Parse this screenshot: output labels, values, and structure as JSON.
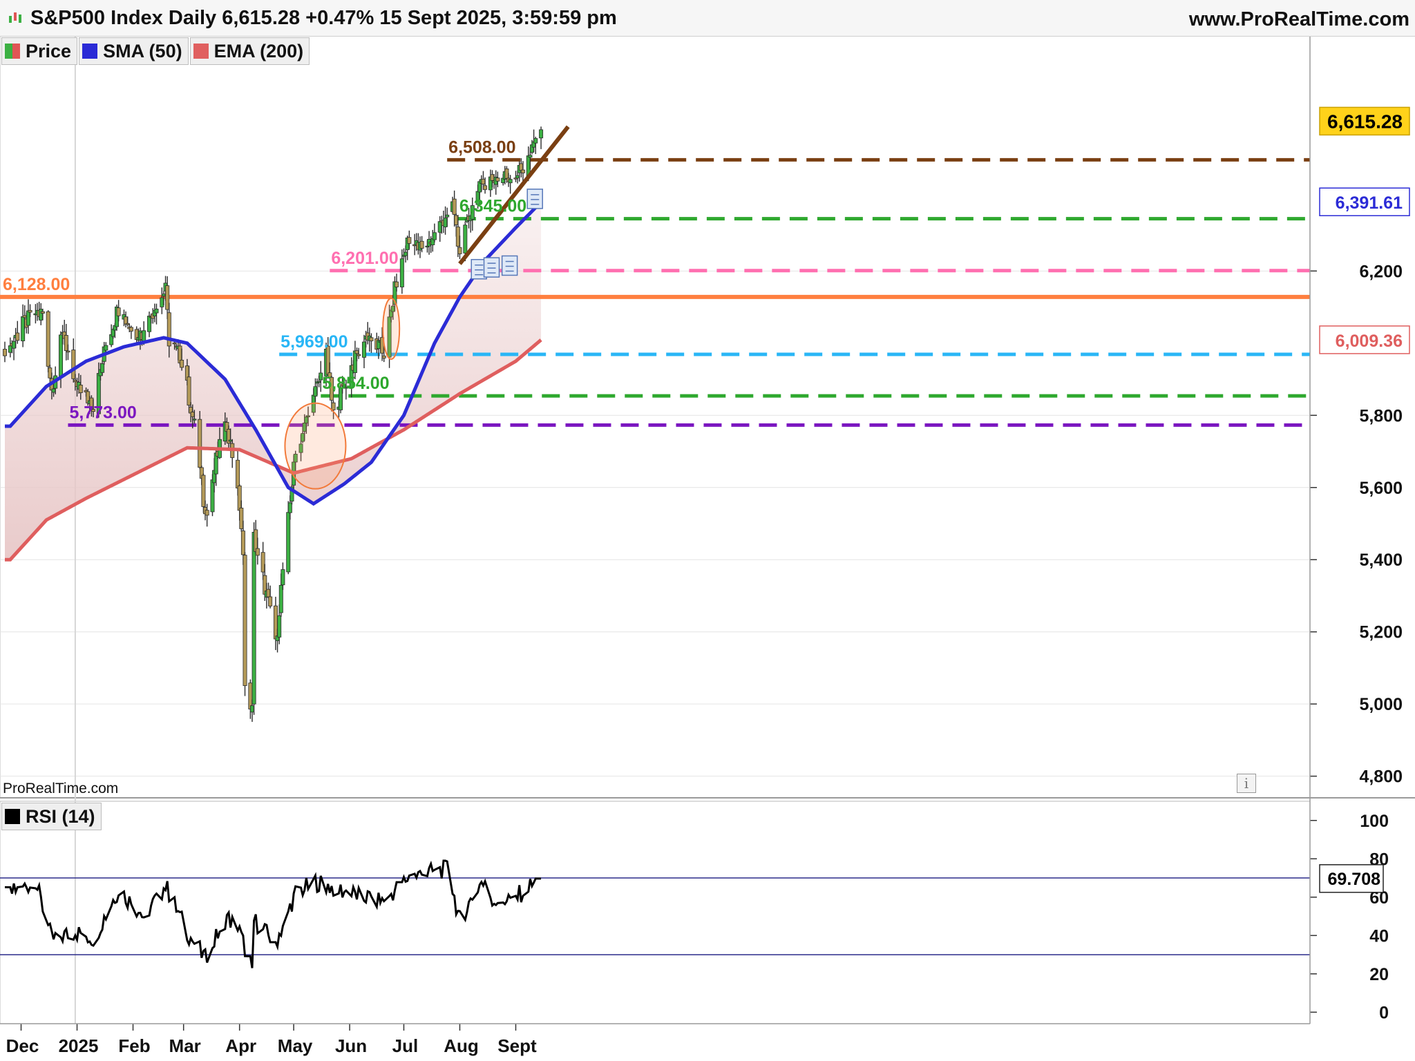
{
  "header": {
    "title": "S&P500 Index Daily 6,615.28 +0.47% 15 Sept 2025, 3:59:59 pm",
    "site": "www.ProRealTime.com",
    "watermark": "ProRealTime.com",
    "info_icon": "info-icon"
  },
  "legend": [
    {
      "label": "Price",
      "color": "#3cb043",
      "color2": "#e05555"
    },
    {
      "label": "SMA (50)",
      "color": "#2b2bd6"
    },
    {
      "label": "EMA (200)",
      "color": "#e06060"
    }
  ],
  "rsi_legend": {
    "label": "RSI (14)",
    "color": "#000000"
  },
  "colors": {
    "up": "#3cb043",
    "down": "#b49a58",
    "sma": "#2b2bd6",
    "ema": "#df5e5e",
    "fill": "#e8c8c8",
    "resistance": "#ff7f3f",
    "trend": "#7a3f12"
  },
  "chart_data": [
    {
      "type": "candlestick",
      "title": "S&P500 Index Daily",
      "y_ticks": [
        4800,
        5000,
        5200,
        5400,
        5600,
        5800,
        6200
      ],
      "y_tick_labels": [
        "4,800",
        "5,000",
        "5,200",
        "5,400",
        "5,600",
        "5,800",
        "6,200"
      ],
      "ylim": [
        4740,
        6840
      ],
      "x_ticks": [
        "Dec",
        "2025",
        "Feb",
        "Mar",
        "Apr",
        "May",
        "Jun",
        "Jul",
        "Aug",
        "Sept"
      ],
      "price_markers": [
        {
          "label": "6,615.28",
          "value": 6615.28,
          "bg": "#ffd21a",
          "fg": "#000000"
        },
        {
          "label": "6,391.61",
          "value": 6391.61,
          "bg": "#ffffff",
          "fg": "#2b2bd6"
        },
        {
          "label": "6,009.36",
          "value": 6009.36,
          "bg": "#ffffff",
          "fg": "#df5e5e"
        }
      ],
      "levels": [
        {
          "label": "6,128.00",
          "value": 6128,
          "color": "#ff7f3f",
          "style": "solid",
          "from": "Nov 25"
        },
        {
          "label": "6,508.00",
          "value": 6508,
          "color": "#7a3f12",
          "style": "dashed",
          "from": "Jul 25"
        },
        {
          "label": "6,345.00",
          "value": 6345,
          "color": "#2ea82e",
          "style": "dashed",
          "from": "Jul 31"
        },
        {
          "label": "6,201.00",
          "value": 6201,
          "color": "#ff6fb0",
          "style": "dashed",
          "from": "May 21"
        },
        {
          "label": "5,969.00",
          "value": 5969,
          "color": "#29b6f6",
          "style": "dashed",
          "from": "Apr 23"
        },
        {
          "label": "5,854.00",
          "value": 5854,
          "color": "#2ea82e",
          "style": "dashed",
          "from": "May 16"
        },
        {
          "label": "5,773.00",
          "value": 5773,
          "color": "#7b16c0",
          "style": "dashed",
          "from": "Dec 27"
        }
      ],
      "trendline": {
        "color": "#7a3f12",
        "from": {
          "x": "Aug 1",
          "y": 6220
        },
        "to": {
          "x": "Sept 30",
          "y": 6600
        }
      },
      "series_close": [
        {
          "x": "Nov 25",
          "y": 5990
        },
        {
          "x": "Dec 2",
          "y": 6050
        },
        {
          "x": "Dec 9",
          "y": 6085
        },
        {
          "x": "Dec 13",
          "y": 6080
        },
        {
          "x": "Dec 18",
          "y": 5870
        },
        {
          "x": "Dec 24",
          "y": 6040
        },
        {
          "x": "Dec 31",
          "y": 5880
        },
        {
          "x": "Jan 10",
          "y": 5830
        },
        {
          "x": "Jan 17",
          "y": 5995
        },
        {
          "x": "Jan 24",
          "y": 6100
        },
        {
          "x": "Jan 31",
          "y": 6040
        },
        {
          "x": "Feb 7",
          "y": 6025
        },
        {
          "x": "Feb 14",
          "y": 6115
        },
        {
          "x": "Feb 19",
          "y": 6145
        },
        {
          "x": "Feb 21",
          "y": 6010
        },
        {
          "x": "Feb 28",
          "y": 5955
        },
        {
          "x": "Mar 7",
          "y": 5770
        },
        {
          "x": "Mar 13",
          "y": 5520
        },
        {
          "x": "Mar 19",
          "y": 5675
        },
        {
          "x": "Mar 25",
          "y": 5775
        },
        {
          "x": "Mar 31",
          "y": 5610
        },
        {
          "x": "Apr 3",
          "y": 5400
        },
        {
          "x": "Apr 4",
          "y": 5075
        },
        {
          "x": "Apr 8",
          "y": 4980
        },
        {
          "x": "Apr 9",
          "y": 5460
        },
        {
          "x": "Apr 17",
          "y": 5280
        },
        {
          "x": "Apr 21",
          "y": 5160
        },
        {
          "x": "Apr 28",
          "y": 5530
        },
        {
          "x": "May 2",
          "y": 5690
        },
        {
          "x": "May 12",
          "y": 5845
        },
        {
          "x": "May 19",
          "y": 5960
        },
        {
          "x": "May 23",
          "y": 5805
        },
        {
          "x": "Jun 2",
          "y": 5935
        },
        {
          "x": "Jun 11",
          "y": 6025
        },
        {
          "x": "Jun 20",
          "y": 5970
        },
        {
          "x": "Jun 27",
          "y": 6175
        },
        {
          "x": "Jul 3",
          "y": 6280
        },
        {
          "x": "Jul 11",
          "y": 6260
        },
        {
          "x": "Jul 18",
          "y": 6300
        },
        {
          "x": "Jul 28",
          "y": 6390
        },
        {
          "x": "Aug 1",
          "y": 6240
        },
        {
          "x": "Aug 8",
          "y": 6390
        },
        {
          "x": "Aug 15",
          "y": 6450
        },
        {
          "x": "Aug 22",
          "y": 6460
        },
        {
          "x": "Aug 29",
          "y": 6460
        },
        {
          "x": "Sept 5",
          "y": 6480
        },
        {
          "x": "Sept 10",
          "y": 6530
        },
        {
          "x": "Sept 15",
          "y": 6615
        }
      ],
      "sma_50": [
        {
          "x": "Nov 25",
          "y": 5770
        },
        {
          "x": "Dec 15",
          "y": 5880
        },
        {
          "x": "Jan 6",
          "y": 5950
        },
        {
          "x": "Jan 27",
          "y": 5990
        },
        {
          "x": "Feb 18",
          "y": 6015
        },
        {
          "x": "Mar 3",
          "y": 6000
        },
        {
          "x": "Mar 24",
          "y": 5900
        },
        {
          "x": "Apr 10",
          "y": 5760
        },
        {
          "x": "Apr 28",
          "y": 5600
        },
        {
          "x": "May 12",
          "y": 5555
        },
        {
          "x": "May 29",
          "y": 5610
        },
        {
          "x": "Jun 13",
          "y": 5670
        },
        {
          "x": "Jul 1",
          "y": 5800
        },
        {
          "x": "Jul 18",
          "y": 6000
        },
        {
          "x": "Aug 1",
          "y": 6128
        },
        {
          "x": "Aug 15",
          "y": 6230
        },
        {
          "x": "Sept 1",
          "y": 6320
        },
        {
          "x": "Sept 15",
          "y": 6391
        }
      ],
      "ema_200": [
        {
          "x": "Nov 25",
          "y": 5400
        },
        {
          "x": "Dec 15",
          "y": 5510
        },
        {
          "x": "Jan 6",
          "y": 5570
        },
        {
          "x": "Feb 3",
          "y": 5640
        },
        {
          "x": "Mar 3",
          "y": 5710
        },
        {
          "x": "Apr 1",
          "y": 5705
        },
        {
          "x": "May 1",
          "y": 5640
        },
        {
          "x": "Jun 2",
          "y": 5680
        },
        {
          "x": "Jul 1",
          "y": 5760
        },
        {
          "x": "Aug 1",
          "y": 5860
        },
        {
          "x": "Sept 1",
          "y": 5950
        },
        {
          "x": "Sept 15",
          "y": 6009
        }
      ]
    },
    {
      "type": "line",
      "title": "RSI (14)",
      "y_ticks": [
        0,
        20,
        40,
        60,
        80,
        100
      ],
      "ylim": [
        -6,
        110
      ],
      "bands": [
        70,
        30
      ],
      "last_label": "69.708",
      "series": [
        {
          "name": "RSI (14)",
          "x": [
            "Nov 25",
            "Dec 9",
            "Dec 18",
            "Dec 31",
            "Jan 10",
            "Jan 24",
            "Feb 7",
            "Feb 19",
            "Mar 4",
            "Mar 13",
            "Mar 25",
            "Apr 1",
            "Apr 8",
            "Apr 9",
            "Apr 21",
            "May 2",
            "May 13",
            "Jun 1",
            "Jun 20",
            "Jul 3",
            "Jul 25",
            "Aug 1",
            "Aug 13",
            "Aug 20",
            "Sept 1",
            "Sept 15"
          ],
          "values": [
            62,
            68,
            38,
            42,
            38,
            64,
            50,
            66,
            40,
            28,
            50,
            42,
            22,
            48,
            36,
            62,
            68,
            62,
            58,
            70,
            75,
            48,
            68,
            58,
            60,
            69.708
          ]
        }
      ]
    }
  ]
}
